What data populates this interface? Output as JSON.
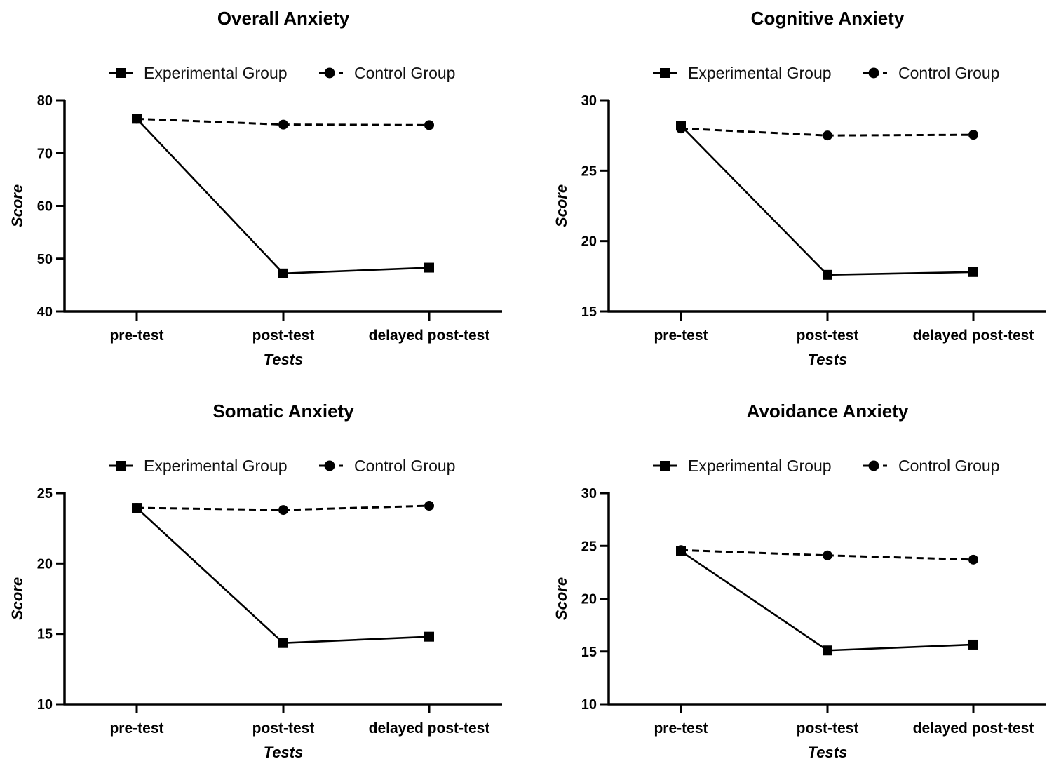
{
  "chart_data": [
    {
      "type": "line",
      "title": "Overall Anxiety",
      "xlabel": "Tests",
      "ylabel": "Score",
      "categories": [
        "pre-test",
        "post-test",
        "delayed post-test"
      ],
      "ylim": [
        40,
        80
      ],
      "yticks": [
        40,
        50,
        60,
        70,
        80
      ],
      "legend": "top",
      "grid": false,
      "series": [
        {
          "name": "Experimental Group",
          "marker": "square",
          "line": "solid",
          "values": [
            76.5,
            47.2,
            48.3
          ]
        },
        {
          "name": "Control Group",
          "marker": "circle",
          "line": "dashed",
          "values": [
            76.5,
            75.4,
            75.3
          ]
        }
      ]
    },
    {
      "type": "line",
      "title": "Cognitive Anxiety",
      "xlabel": "Tests",
      "ylabel": "Score",
      "categories": [
        "pre-test",
        "post-test",
        "delayed post-test"
      ],
      "ylim": [
        15,
        30
      ],
      "yticks": [
        15,
        20,
        25,
        30
      ],
      "legend": "top",
      "grid": false,
      "series": [
        {
          "name": "Experimental Group",
          "marker": "square",
          "line": "solid",
          "values": [
            28.2,
            17.6,
            17.8
          ]
        },
        {
          "name": "Control Group",
          "marker": "circle",
          "line": "dashed",
          "values": [
            28.0,
            27.5,
            27.55
          ]
        }
      ]
    },
    {
      "type": "line",
      "title": "Somatic Anxiety",
      "xlabel": "Tests",
      "ylabel": "Score",
      "categories": [
        "pre-test",
        "post-test",
        "delayed post-test"
      ],
      "ylim": [
        10,
        25
      ],
      "yticks": [
        10,
        15,
        20,
        25
      ],
      "legend": "top",
      "grid": false,
      "series": [
        {
          "name": "Experimental Group",
          "marker": "square",
          "line": "solid",
          "values": [
            23.95,
            14.35,
            14.8
          ]
        },
        {
          "name": "Control Group",
          "marker": "circle",
          "line": "dashed",
          "values": [
            23.95,
            23.8,
            24.1
          ]
        }
      ]
    },
    {
      "type": "line",
      "title": "Avoidance Anxiety",
      "xlabel": "Tests",
      "ylabel": "Score",
      "categories": [
        "pre-test",
        "post-test",
        "delayed post-test"
      ],
      "ylim": [
        10,
        30
      ],
      "yticks": [
        10,
        15,
        20,
        25,
        30
      ],
      "legend": "top",
      "grid": false,
      "series": [
        {
          "name": "Experimental Group",
          "marker": "square",
          "line": "solid",
          "values": [
            24.5,
            15.1,
            15.65
          ]
        },
        {
          "name": "Control Group",
          "marker": "circle",
          "line": "dashed",
          "values": [
            24.6,
            24.1,
            23.7
          ]
        }
      ]
    }
  ],
  "colors": {
    "ink": "#000000",
    "background": "#ffffff"
  }
}
